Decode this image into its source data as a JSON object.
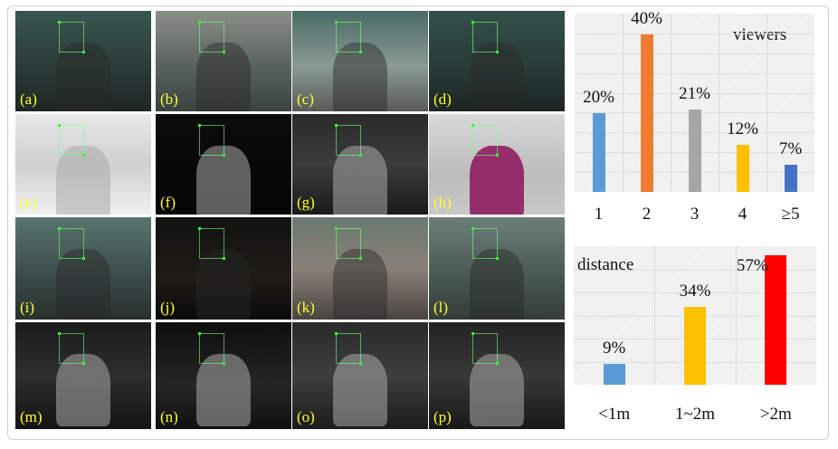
{
  "panels": [
    {
      "label": "(a)",
      "bg": "linear-gradient(#3a5650,#2a3a36 60%,#1e2624)"
    },
    {
      "label": "(b)",
      "bg": "linear-gradient(#8a8e88,#5a6260 55%,#3a4240)"
    },
    {
      "label": "(c)",
      "bg": "linear-gradient(#4a6a64,#8a9a94 55%,#5a5a58)"
    },
    {
      "label": "(d)",
      "bg": "linear-gradient(#34504a,#283a36 60%,#1c2422)"
    },
    {
      "label": "(e)",
      "bg": "linear-gradient(#e8e8e8,#cfcfcf 50%,#f0f0f0)"
    },
    {
      "label": "(f)",
      "bg": "linear-gradient(#0c0c0c,#050505)"
    },
    {
      "label": "(g)",
      "bg": "linear-gradient(#2a2a2a,#3c3c3c 50%,#1a1a1a)"
    },
    {
      "label": "(h)",
      "bg": "linear-gradient(#d8d8d8,#bcbcbc 60%,#c8c8c8)"
    },
    {
      "label": "(i)",
      "bg": "linear-gradient(#5a7470,#3c4e4a 55%,#28302e)"
    },
    {
      "label": "(j)",
      "bg": "linear-gradient(#121210,#1e1c16 60%,#0a0a08)"
    },
    {
      "label": "(k)",
      "bg": "linear-gradient(#6a7a70,#8a8078 50%,#4a4440)"
    },
    {
      "label": "(l)",
      "bg": "linear-gradient(#6c8078,#4a5a54 55%,#343c38)"
    },
    {
      "label": "(m)",
      "bg": "linear-gradient(#1c1c1c,#2e2e2e 50%,#141414)"
    },
    {
      "label": "(n)",
      "bg": "linear-gradient(#0e0e0e,#262626 60%,#101010)"
    },
    {
      "label": "(o)",
      "bg": "linear-gradient(#2a2a2a,#3e3e3e 50%,#1c1c1c)"
    },
    {
      "label": "(p)",
      "bg": "linear-gradient(#242424,#383838 50%,#181818)"
    }
  ],
  "chart_data": [
    {
      "type": "bar",
      "title": "viewers",
      "categories": [
        "1",
        "2",
        "3",
        "4",
        "≥5"
      ],
      "values": [
        20,
        40,
        21,
        12,
        7
      ],
      "data_labels": [
        "20%",
        "40%",
        "21%",
        "12%",
        "7%"
      ],
      "colors": [
        "#5b9bd5",
        "#ed7d31",
        "#a5a5a5",
        "#ffc000",
        "#4472c4"
      ],
      "ylim": [
        0,
        40
      ],
      "grid": true
    },
    {
      "type": "bar",
      "title": "distance",
      "categories": [
        "<1m",
        "1~2m",
        ">2m"
      ],
      "values": [
        9,
        34,
        57
      ],
      "data_labels": [
        "9%",
        "34%",
        "57%"
      ],
      "colors": [
        "#5b9bd5",
        "#ffc000",
        "#ff0000"
      ],
      "ylim": [
        0,
        60
      ],
      "grid": true
    }
  ]
}
